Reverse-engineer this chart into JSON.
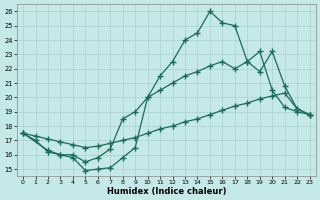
{
  "xlabel": "Humidex (Indice chaleur)",
  "xlim": [
    -0.5,
    23.5
  ],
  "ylim": [
    14.5,
    26.5
  ],
  "xticks": [
    0,
    1,
    2,
    3,
    4,
    5,
    6,
    7,
    8,
    9,
    10,
    11,
    12,
    13,
    14,
    15,
    16,
    17,
    18,
    19,
    20,
    21,
    22,
    23
  ],
  "yticks": [
    15,
    16,
    17,
    18,
    19,
    20,
    21,
    22,
    23,
    24,
    25,
    26
  ],
  "bg_color": "#c5e8e8",
  "line_color": "#1a6b5a",
  "grid_color": "#aad0d0",
  "line1_x": [
    0,
    1,
    2,
    3,
    4,
    5,
    6,
    7,
    8,
    9,
    10,
    11,
    12,
    13,
    14,
    15,
    16,
    17,
    18,
    19,
    20,
    21,
    22,
    23
  ],
  "line1_y": [
    17.5,
    17.0,
    16.2,
    16.0,
    15.8,
    14.9,
    15.0,
    15.1,
    15.8,
    16.5,
    20.0,
    21.5,
    22.5,
    24.0,
    24.5,
    26.0,
    25.2,
    25.0,
    22.5,
    23.2,
    20.5,
    19.3,
    19.0,
    18.8
  ],
  "line2_x": [
    0,
    2,
    3,
    4,
    5,
    6,
    7,
    8,
    9,
    10,
    11,
    12,
    13,
    14,
    15,
    16,
    17,
    18,
    19,
    20,
    21,
    22,
    23
  ],
  "line2_y": [
    17.5,
    16.3,
    16.0,
    16.0,
    15.5,
    15.8,
    16.4,
    18.5,
    19.0,
    20.0,
    20.5,
    21.0,
    21.5,
    21.8,
    22.2,
    22.5,
    22.0,
    22.5,
    21.8,
    23.2,
    20.8,
    19.2,
    18.8
  ],
  "line3_x": [
    0,
    1,
    2,
    3,
    4,
    5,
    6,
    7,
    8,
    9,
    10,
    11,
    12,
    13,
    14,
    15,
    16,
    17,
    18,
    19,
    20,
    21,
    22,
    23
  ],
  "line3_y": [
    17.5,
    17.3,
    17.1,
    16.9,
    16.7,
    16.5,
    16.6,
    16.8,
    17.0,
    17.2,
    17.5,
    17.8,
    18.0,
    18.3,
    18.5,
    18.8,
    19.1,
    19.4,
    19.6,
    19.9,
    20.1,
    20.3,
    19.2,
    18.8
  ]
}
